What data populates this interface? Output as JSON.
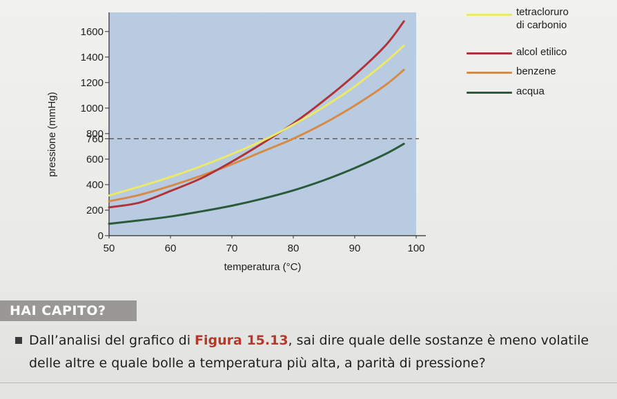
{
  "chart_data": {
    "type": "line",
    "xlabel": "temperatura (°C)",
    "ylabel": "pressione (mmHg)",
    "xlim": [
      50,
      100
    ],
    "ylim": [
      0,
      1750
    ],
    "x_ticks": [
      "50",
      "60",
      "70",
      "80",
      "90",
      "100"
    ],
    "y_ticks": [
      "0",
      "200",
      "400",
      "600",
      "760",
      "800",
      "1000",
      "1200",
      "1400",
      "1600"
    ],
    "reference_line": {
      "y": 760,
      "style": "dashed"
    },
    "grid": false,
    "legend_position": "top-right, outside plot",
    "plot_background": "#b8cbe0",
    "series": [
      {
        "name": "tetracloruro di carbonio",
        "color": "#ece86a",
        "x": [
          50,
          55,
          60,
          65,
          70,
          75,
          80,
          85,
          90,
          95,
          98
        ],
        "y": [
          315,
          385,
          460,
          545,
          640,
          745,
          870,
          1010,
          1170,
          1360,
          1490
        ]
      },
      {
        "name": "alcol etilico",
        "color": "#b1333a",
        "x": [
          50,
          55,
          60,
          65,
          70,
          75,
          80,
          85,
          90,
          95,
          98
        ],
        "y": [
          222,
          260,
          350,
          450,
          580,
          725,
          880,
          1060,
          1260,
          1490,
          1680
        ]
      },
      {
        "name": "benzene",
        "color": "#d68a45",
        "x": [
          50,
          55,
          60,
          65,
          70,
          75,
          80,
          85,
          90,
          95,
          98
        ],
        "y": [
          270,
          320,
          390,
          470,
          560,
          660,
          760,
          880,
          1020,
          1180,
          1300
        ]
      },
      {
        "name": "acqua",
        "color": "#2a5a3a",
        "x": [
          50,
          55,
          60,
          65,
          70,
          75,
          80,
          85,
          90,
          95,
          98
        ],
        "y": [
          93,
          120,
          150,
          190,
          235,
          290,
          355,
          435,
          530,
          640,
          720
        ]
      }
    ]
  },
  "legend": {
    "ccl4_line1": "tetracloruro",
    "ccl4_line2": "di carbonio",
    "ethanol": "alcol etilico",
    "benzene": "benzene",
    "water": "acqua"
  },
  "question": {
    "title": "HAI CAPITO?",
    "text_before": "Dall’analisi del grafico di ",
    "figure_ref": "Figura 15.13",
    "text_after": ", sai dire quale delle sostanze è meno volatile delle altre e quale bolle a temperatura più alta, a parità di pressione?"
  }
}
